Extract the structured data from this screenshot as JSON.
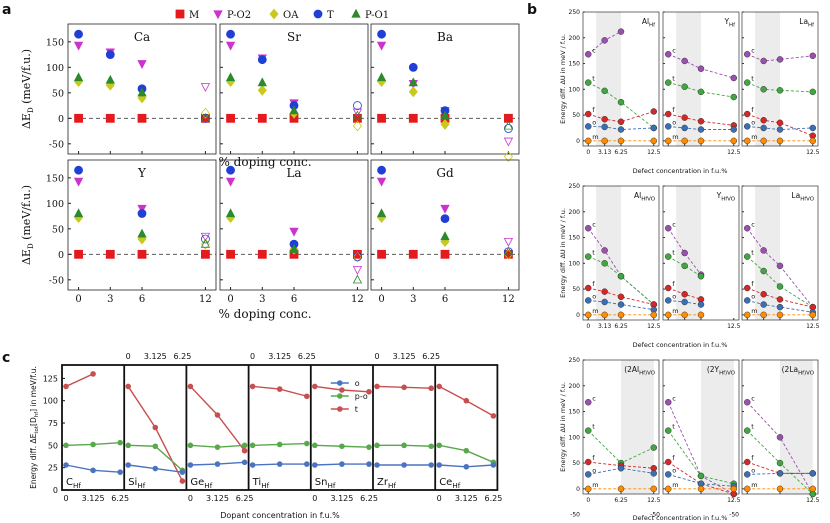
{
  "chart_data": [
    {
      "panel": "a",
      "type": "scatter",
      "ylabel": "ΔE_D^{α−M} (meV/f.u.)",
      "xlabel": "% doping conc.",
      "x_ticks": [
        "0",
        "3",
        "6",
        "12"
      ],
      "x_values": [
        0,
        3,
        6,
        12
      ],
      "ylim": [
        -70,
        185
      ],
      "y_ticks": [
        -50,
        0,
        50,
        100,
        150
      ],
      "legend": [
        {
          "key": "M",
          "label": "M",
          "color": "#e41a1c",
          "marker": "square"
        },
        {
          "key": "PO2",
          "label": "P-O2",
          "color": "#cc33cc",
          "marker": "tri-down"
        },
        {
          "key": "OA",
          "label": "OA",
          "color": "#c8c81e",
          "marker": "diamond"
        },
        {
          "key": "T",
          "label": "T",
          "color": "#1f3fd6",
          "marker": "circle"
        },
        {
          "key": "PO1",
          "label": "P-O1",
          "color": "#2c8a2c",
          "marker": "tri-up"
        }
      ],
      "subplots": [
        {
          "title": "Ca",
          "series": {
            "M": [
              0,
              0,
              0,
              0
            ],
            "PO2": [
              143,
              130,
              107,
              62
            ],
            "OA": [
              72,
              65,
              40,
              10
            ],
            "T": [
              165,
              125,
              58,
              0
            ],
            "PO1": [
              80,
              75,
              50,
              0
            ]
          }
        },
        {
          "title": "Sr",
          "series": {
            "M": [
              0,
              0,
              0,
              0
            ],
            "PO2": [
              143,
              118,
              30,
              12
            ],
            "OA": [
              72,
              55,
              10,
              -15
            ],
            "T": [
              165,
              115,
              25,
              25
            ],
            "PO1": [
              80,
              70,
              15,
              5
            ]
          }
        },
        {
          "title": "Ba",
          "series": {
            "M": [
              0,
              0,
              0,
              0
            ],
            "PO2": [
              143,
              68,
              15,
              -45
            ],
            "OA": [
              72,
              52,
              -12,
              -75
            ],
            "T": [
              165,
              100,
              15,
              -20
            ],
            "PO1": [
              80,
              70,
              5,
              -15
            ]
          }
        },
        {
          "title": "Y",
          "series": {
            "M": [
              0,
              0,
              0,
              0
            ],
            "PO2": [
              143,
              0,
              90,
              35
            ],
            "OA": [
              72,
              0,
              30,
              20
            ],
            "T": [
              165,
              0,
              80,
              30
            ],
            "PO1": [
              80,
              0,
              40,
              20
            ]
          }
        },
        {
          "title": "La",
          "series": {
            "M": [
              0,
              0,
              0,
              0
            ],
            "PO2": [
              143,
              0,
              45,
              -30
            ],
            "OA": [
              72,
              0,
              10,
              -5
            ],
            "T": [
              165,
              0,
              20,
              -5
            ],
            "PO1": [
              80,
              0,
              10,
              -50
            ]
          }
        },
        {
          "title": "Gd",
          "series": {
            "M": [
              0,
              0,
              0,
              0
            ],
            "PO2": [
              143,
              0,
              90,
              25
            ],
            "OA": [
              72,
              0,
              25,
              0
            ],
            "T": [
              165,
              0,
              70,
              5
            ],
            "PO1": [
              80,
              0,
              35,
              5
            ]
          }
        }
      ]
    },
    {
      "panel": "b",
      "type": "line",
      "ylabel": "Energy diff. ΔU in meV / f.u.",
      "xlabel": "Defect concentration in f.u.%",
      "ylim": [
        -10,
        250
      ],
      "y_ticks": [
        0,
        50,
        100,
        150,
        200,
        250
      ],
      "phase_colors": {
        "c": "#9b4fb0",
        "t": "#3ea83e",
        "f": "#d62728",
        "o": "#3b6fb5",
        "m": "#ff8c00"
      },
      "rows": [
        {
          "panels": [
            {
              "title": "Al_Hf",
              "x_ticks": [
                "0",
                "3.13",
                "6.25",
                "12.5"
              ],
              "x": [
                0,
                3.13,
                6.25,
                12.5
              ],
              "series": {
                "c": [
                  168,
                  195,
                  212,
                  null
                ],
                "t": [
                  113,
                  97,
                  75,
                  25
                ],
                "f": [
                  52,
                  42,
                  37,
                  57
                ],
                "o": [
                  28,
                  27,
                  22,
                  25
                ],
                "m": [
                  0,
                  0,
                  0,
                  0
                ]
              }
            },
            {
              "title": "Y_Hf",
              "x_ticks": [
                "",
                "",
                "",
                "12.5"
              ],
              "x": [
                0,
                3.13,
                6.25,
                12.5
              ],
              "series": {
                "c": [
                  168,
                  155,
                  140,
                  122
                ],
                "t": [
                  113,
                  105,
                  95,
                  85
                ],
                "f": [
                  52,
                  45,
                  38,
                  30
                ],
                "o": [
                  28,
                  25,
                  22,
                  22
                ],
                "m": [
                  0,
                  0,
                  0,
                  0
                ]
              }
            },
            {
              "title": "La_Hf",
              "x_ticks": [
                "",
                "",
                "",
                "12.5"
              ],
              "x": [
                0,
                3.13,
                6.25,
                12.5
              ],
              "series": {
                "c": [
                  168,
                  155,
                  158,
                  165
                ],
                "t": [
                  113,
                  100,
                  98,
                  95
                ],
                "f": [
                  52,
                  40,
                  35,
                  10
                ],
                "o": [
                  28,
                  25,
                  22,
                  25
                ],
                "m": [
                  0,
                  0,
                  0,
                  0
                ]
              }
            }
          ]
        },
        {
          "panels": [
            {
              "title": "Al_HfV_O",
              "x_ticks": [
                "0",
                "3.13",
                "6.25",
                "12.5"
              ],
              "x": [
                0,
                3.13,
                6.25,
                12.5
              ],
              "series": {
                "c": [
                  168,
                  125,
                  75,
                  20
                ],
                "t": [
                  113,
                  100,
                  75,
                  20
                ],
                "f": [
                  52,
                  45,
                  35,
                  20
                ],
                "o": [
                  28,
                  25,
                  20,
                  10
                ],
                "m": [
                  0,
                  0,
                  0,
                  0
                ]
              }
            },
            {
              "title": "Y_HfV_O",
              "x_ticks": [
                "",
                "",
                "",
                "12.5"
              ],
              "x": [
                0,
                3.13,
                6.25,
                12.5
              ],
              "series": {
                "c": [
                  168,
                  120,
                  78,
                  null
                ],
                "t": [
                  113,
                  95,
                  75,
                  null
                ],
                "f": [
                  52,
                  40,
                  30,
                  null
                ],
                "o": [
                  28,
                  25,
                  20,
                  null
                ],
                "m": [
                  0,
                  0,
                  0,
                  null
                ]
              }
            },
            {
              "title": "La_HfV_O",
              "x_ticks": [
                "",
                "",
                "",
                "12.5"
              ],
              "x": [
                0,
                3.13,
                6.25,
                12.5
              ],
              "series": {
                "c": [
                  168,
                  125,
                  95,
                  15
                ],
                "t": [
                  113,
                  85,
                  55,
                  15
                ],
                "f": [
                  52,
                  40,
                  30,
                  15
                ],
                "o": [
                  28,
                  20,
                  15,
                  5
                ],
                "m": [
                  0,
                  0,
                  0,
                  0
                ]
              }
            }
          ]
        },
        {
          "panels": [
            {
              "title": "(2Al_Hf)V_O",
              "x_ticks": [
                "0",
                "",
                "6.25",
                "12.5"
              ],
              "x": [
                0,
                6.25,
                12.5
              ],
              "series": {
                "c": [
                  168,
                  null,
                  null
                ],
                "t": [
                  113,
                  50,
                  80
                ],
                "f": [
                  52,
                  45,
                  40
                ],
                "o": [
                  28,
                  40,
                  30
                ],
                "m": [
                  0,
                  0,
                  0
                ]
              }
            },
            {
              "title": "(2Y_Hf)V_O",
              "x_ticks": [
                "",
                "",
                "",
                "12.5"
              ],
              "x": [
                0,
                6.25,
                12.5
              ],
              "series": {
                "c": [
                  168,
                  25,
                  -20
                ],
                "t": [
                  113,
                  25,
                  10
                ],
                "f": [
                  52,
                  10,
                  -25
                ],
                "o": [
                  28,
                  10,
                  5
                ],
                "m": [
                  0,
                  0,
                  0
                ]
              }
            },
            {
              "title": "(2La_Hf)V_O",
              "x_ticks": [
                "",
                "",
                "",
                "12.5"
              ],
              "x": [
                0,
                6.25,
                12.5
              ],
              "series": {
                "c": [
                  168,
                  100,
                  -40
                ],
                "t": [
                  113,
                  50,
                  -50
                ],
                "f": [
                  52,
                  30,
                  30
                ],
                "o": [
                  28,
                  30,
                  30
                ],
                "m": [
                  0,
                  0,
                  0
                ]
              }
            }
          ]
        }
      ]
    },
    {
      "panel": "c",
      "type": "line",
      "ylabel": "Energy diff. ΔE_tot^{i−m}[D_hf] in meV/f.u.",
      "xlabel": "Dopant concentration in f.u.%",
      "ylim": [
        0,
        140
      ],
      "y_ticks": [
        0,
        25,
        50,
        75,
        100,
        125
      ],
      "x_ticks": [
        "0",
        "3.125",
        "6.25"
      ],
      "x": [
        0,
        3.125,
        6.25
      ],
      "legend": [
        {
          "key": "o",
          "label": "o",
          "color": "#4a74c2"
        },
        {
          "key": "po",
          "label": "p-o",
          "color": "#5aa84e"
        },
        {
          "key": "t",
          "label": "t",
          "color": "#c84f4f"
        }
      ],
      "subplots": [
        {
          "label": "C_Hf",
          "series": {
            "o": [
              28,
              22,
              20
            ],
            "po": [
              50,
              51,
              53
            ],
            "t": [
              116,
              130,
              null
            ]
          }
        },
        {
          "label": "Si_Hf",
          "series": {
            "o": [
              28,
              24,
              20
            ],
            "po": [
              50,
              49,
              22
            ],
            "t": [
              116,
              70,
              10
            ]
          }
        },
        {
          "label": "Ge_Hf",
          "series": {
            "o": [
              28,
              29,
              31
            ],
            "po": [
              50,
              48,
              50
            ],
            "t": [
              116,
              84,
              44
            ]
          }
        },
        {
          "label": "Ti_Hf",
          "series": {
            "o": [
              28,
              29,
              29
            ],
            "po": [
              50,
              51,
              52
            ],
            "t": [
              116,
              113,
              105
            ]
          }
        },
        {
          "label": "Sn_Hf",
          "series": {
            "o": [
              28,
              29,
              29
            ],
            "po": [
              50,
              49,
              48
            ],
            "t": [
              116,
              112,
              110
            ]
          }
        },
        {
          "label": "Zr_Hf",
          "series": {
            "o": [
              28,
              28,
              28
            ],
            "po": [
              50,
              50,
              49
            ],
            "t": [
              116,
              115,
              114
            ]
          }
        },
        {
          "label": "Ce_Hf",
          "series": {
            "o": [
              28,
              26,
              28
            ],
            "po": [
              50,
              44,
              31
            ],
            "t": [
              116,
              100,
              83
            ]
          }
        }
      ]
    }
  ],
  "panel_labels": {
    "a": "a",
    "b": "b",
    "c": "c"
  },
  "text": {
    "a_xlabel": "% doping conc.",
    "a_ylabel": "ΔE",
    "b_xlabel": "Defect concentration in f.u.%",
    "b_ylabel": "Energy diff. ΔU in meV / f.u.",
    "c_xlabel": "Dopant concentration in f.u.%",
    "c_ylabel": "Energy diff. ΔE",
    "c_ylabel_rest": "[D",
    "c_ylabel_unit": "] in meV/f.u."
  }
}
